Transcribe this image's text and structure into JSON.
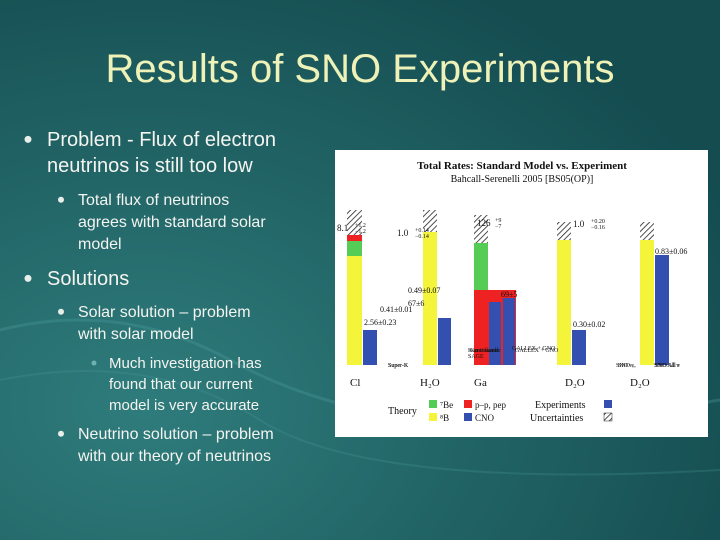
{
  "slide": {
    "title": "Results of SNO Experiments",
    "bullets": [
      {
        "level": 1,
        "lines": [
          "Problem - Flux of electron",
          "neutrinos is still too low"
        ]
      },
      {
        "level": 2,
        "lines": [
          "Total flux of neutrinos",
          "agrees with standard solar",
          "model"
        ]
      },
      {
        "level": 1,
        "lines": [
          "Solutions"
        ]
      },
      {
        "level": 2,
        "lines": [
          "Solar solution – problem",
          "with solar model"
        ]
      },
      {
        "level": 3,
        "lines": [
          "Much investigation has",
          "found that our current",
          "model is very accurate"
        ]
      },
      {
        "level": 2,
        "lines": [
          "Neutrino solution – problem",
          "with our theory of neutrinos"
        ]
      }
    ]
  },
  "figure": {
    "title": "Total Rates: Standard Model vs. Experiment",
    "subtitle": "Bahcall-Serenelli 2005 [BS05(OP)]",
    "detectors": [
      "Cl",
      "H₂O",
      "Ga",
      "D₂O",
      "D₂O"
    ],
    "experiments": [
      "Super-K",
      "Kamiokande",
      "SAGE",
      "GALLEX + GNO",
      "SNO νₑ",
      "SNO All ν"
    ],
    "theory_labels": [
      {
        "main": "8.1",
        "up": "+1.2",
        "down": "−1.2"
      },
      {
        "main": "1.0",
        "up": "+0.14",
        "down": "−0.14"
      },
      {
        "main": "126",
        "up": "+9",
        "down": "−7"
      },
      {
        "main": "1.0",
        "up": "+0.20",
        "down": "−0.16"
      }
    ],
    "experiment_labels": [
      "2.56±0.23",
      "0.41±0.01",
      "0.49±0.07",
      "67±6",
      "69±5",
      "0.30±0.02",
      "0.83±0.06"
    ],
    "legend": {
      "theory": "Theory",
      "be7": "⁷Be",
      "b8": "⁸B",
      "pp": "p–p, pep",
      "cno": "CNO",
      "experiments": "Experiments",
      "uncertainties": "Uncertainties"
    }
  }
}
